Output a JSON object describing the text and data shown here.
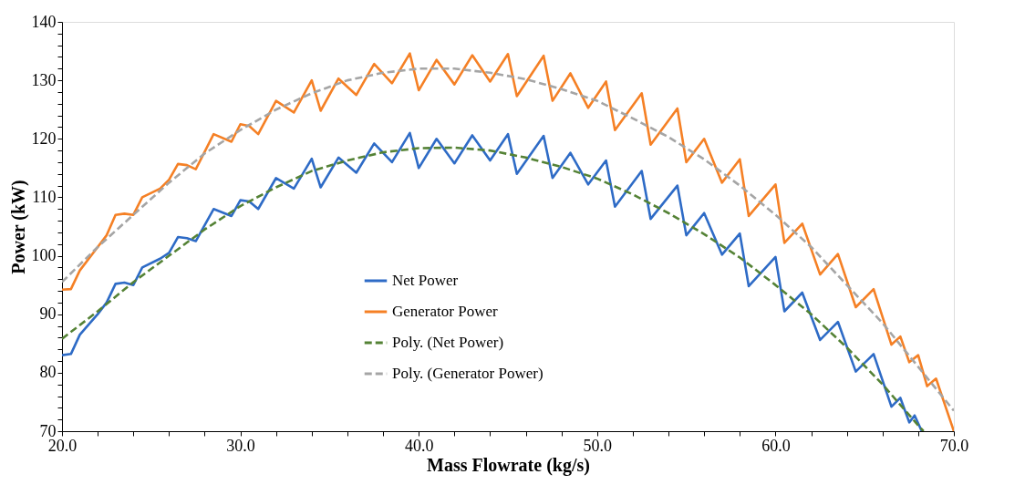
{
  "chart_data": {
    "type": "line",
    "xlabel": "Mass Flowrate (kg/s)",
    "ylabel": "Power (kW)",
    "xlim": [
      20,
      70
    ],
    "ylim": [
      70,
      140
    ],
    "xticks": [
      {
        "value": 20,
        "label": "20.0"
      },
      {
        "value": 22,
        "label": null
      },
      {
        "value": 24,
        "label": null
      },
      {
        "value": 26,
        "label": null
      },
      {
        "value": 28,
        "label": null
      },
      {
        "value": 30,
        "label": "30.0"
      },
      {
        "value": 32,
        "label": null
      },
      {
        "value": 34,
        "label": null
      },
      {
        "value": 36,
        "label": null
      },
      {
        "value": 38,
        "label": null
      },
      {
        "value": 40,
        "label": "40.0"
      },
      {
        "value": 42,
        "label": null
      },
      {
        "value": 44,
        "label": null
      },
      {
        "value": 46,
        "label": null
      },
      {
        "value": 48,
        "label": null
      },
      {
        "value": 50,
        "label": "50.0"
      },
      {
        "value": 52,
        "label": null
      },
      {
        "value": 54,
        "label": null
      },
      {
        "value": 56,
        "label": null
      },
      {
        "value": 58,
        "label": null
      },
      {
        "value": 60,
        "label": "60.0"
      },
      {
        "value": 62,
        "label": null
      },
      {
        "value": 64,
        "label": null
      },
      {
        "value": 66,
        "label": null
      },
      {
        "value": 68,
        "label": null
      },
      {
        "value": 70,
        "label": "70.0"
      }
    ],
    "yticks": [
      70,
      {
        "value": 72,
        "label": null
      },
      {
        "value": 74,
        "label": null
      },
      {
        "value": 76,
        "label": null
      },
      {
        "value": 78,
        "label": null
      },
      80,
      {
        "value": 82,
        "label": null
      },
      {
        "value": 84,
        "label": null
      },
      {
        "value": 86,
        "label": null
      },
      {
        "value": 88,
        "label": null
      },
      90,
      {
        "value": 92,
        "label": null
      },
      {
        "value": 94,
        "label": null
      },
      {
        "value": 96,
        "label": null
      },
      {
        "value": 98,
        "label": null
      },
      100,
      {
        "value": 102,
        "label": null
      },
      {
        "value": 104,
        "label": null
      },
      {
        "value": 106,
        "label": null
      },
      {
        "value": 108,
        "label": null
      },
      110,
      {
        "value": 112,
        "label": null
      },
      {
        "value": 114,
        "label": null
      },
      {
        "value": 116,
        "label": null
      },
      {
        "value": 118,
        "label": null
      },
      120,
      {
        "value": 122,
        "label": null
      },
      {
        "value": 124,
        "label": null
      },
      {
        "value": 126,
        "label": null
      },
      {
        "value": 128,
        "label": null
      },
      130,
      {
        "value": 132,
        "label": null
      },
      {
        "value": 134,
        "label": null
      },
      {
        "value": 136,
        "label": null
      },
      {
        "value": 138,
        "label": null
      },
      140
    ],
    "grid": false,
    "legend": "bottom",
    "marker": "none",
    "series": [
      {
        "name": "Net Power",
        "color": "#2e6bc6",
        "line_style": "solid",
        "x": [
          20,
          20.5,
          21,
          22,
          22.5,
          23,
          23.5,
          24,
          24.5,
          25.5,
          26,
          26.5,
          27,
          27.5,
          28.5,
          29.5,
          30,
          30.5,
          31,
          32,
          33,
          34,
          34.5,
          35.5,
          36.5,
          37.5,
          38.5,
          39.5,
          40,
          41,
          42,
          43,
          44,
          45,
          45.5,
          47,
          47.5,
          48.5,
          49.5,
          50.5,
          51,
          52.5,
          53,
          54.5,
          55,
          56,
          57,
          58,
          58.5,
          60,
          60.5,
          61.5,
          62.5,
          63.5,
          64.5,
          65.5,
          66.5,
          67,
          67.5,
          67.8,
          68.2
        ],
        "values": [
          83,
          83.2,
          86.5,
          90,
          92,
          95.2,
          95.4,
          95,
          98,
          99.5,
          100.5,
          103.2,
          103,
          102.5,
          108,
          106.8,
          109.5,
          109.3,
          108,
          113.3,
          111.5,
          116.6,
          111.7,
          116.8,
          114.2,
          119.2,
          116,
          121,
          115,
          120,
          115.8,
          120.6,
          116.3,
          120.8,
          114,
          120.5,
          113.3,
          117.6,
          112.2,
          116.3,
          108.4,
          114.5,
          106.3,
          112,
          103.5,
          107.3,
          100.2,
          103.8,
          94.8,
          99.8,
          90.5,
          93.7,
          85.6,
          88.7,
          80.2,
          83.2,
          74.2,
          75.7,
          71.5,
          72.7,
          70
        ]
      },
      {
        "name": "Generator Power",
        "color": "#f58025",
        "line_style": "solid",
        "x": [
          20,
          20.5,
          21,
          22,
          22.5,
          23,
          23.5,
          24,
          24.5,
          25.5,
          26,
          26.5,
          27,
          27.5,
          28.5,
          29.5,
          30,
          30.5,
          31,
          32,
          33,
          34,
          34.5,
          35.5,
          36.5,
          37.5,
          38.5,
          39.5,
          40,
          41,
          42,
          43,
          44,
          45,
          45.5,
          47,
          47.5,
          48.5,
          49.5,
          50.5,
          51,
          52.5,
          53,
          54.5,
          55,
          56,
          57,
          58,
          58.5,
          60,
          60.5,
          61.5,
          62.5,
          63.5,
          64.5,
          65.5,
          66.5,
          67,
          67.5,
          68,
          68.5,
          69,
          70
        ],
        "values": [
          94.2,
          94.3,
          97.5,
          101.5,
          103.5,
          107,
          107.2,
          107,
          110,
          111.5,
          113,
          115.7,
          115.5,
          114.8,
          120.8,
          119.5,
          122.5,
          122.2,
          120.8,
          126.5,
          124.5,
          130,
          124.8,
          130.3,
          127.5,
          132.8,
          129.5,
          134.6,
          128.3,
          133.5,
          129.3,
          134.3,
          129.8,
          134.5,
          127.3,
          134.2,
          126.5,
          131.2,
          125.3,
          129.8,
          121.5,
          127.8,
          119,
          125.2,
          116,
          120,
          112.5,
          116.5,
          106.8,
          112.2,
          102.2,
          105.5,
          96.8,
          100.3,
          91.2,
          94.3,
          84.8,
          86.2,
          81.8,
          83,
          77.7,
          79,
          70
        ]
      },
      {
        "name": "Poly. (Net Power)",
        "color": "#548235",
        "line_style": "dashed",
        "x": [
          20,
          22,
          24,
          26,
          28,
          30,
          32,
          34,
          36,
          38,
          40,
          42,
          44,
          46,
          48,
          50,
          52,
          54,
          56,
          58,
          60,
          62,
          64,
          66,
          68,
          68.3
        ],
        "values": [
          85.8,
          90.5,
          95.5,
          100,
          104.5,
          108.5,
          111.7,
          114.5,
          116.3,
          117.7,
          118.4,
          118.5,
          118,
          116.8,
          115.2,
          113.2,
          110.5,
          107.3,
          103.7,
          99.7,
          95,
          90,
          84.3,
          78,
          71,
          70
        ]
      },
      {
        "name": "Poly. (Generator Power)",
        "color": "#a5a5a5",
        "line_style": "dashed",
        "x": [
          20,
          22,
          24,
          26,
          28,
          30,
          32,
          34,
          36,
          38,
          40,
          42,
          44,
          46,
          48,
          50,
          52,
          54,
          56,
          58,
          60,
          62,
          64,
          66,
          68,
          70
        ],
        "values": [
          95.5,
          101.5,
          107,
          112.5,
          117.5,
          121.5,
          125,
          127.8,
          130,
          131.3,
          132,
          132,
          131.3,
          130.2,
          128.5,
          126.5,
          123.5,
          120.3,
          116.5,
          112,
          107,
          101.5,
          95,
          88.5,
          81,
          73.5
        ]
      }
    ]
  }
}
